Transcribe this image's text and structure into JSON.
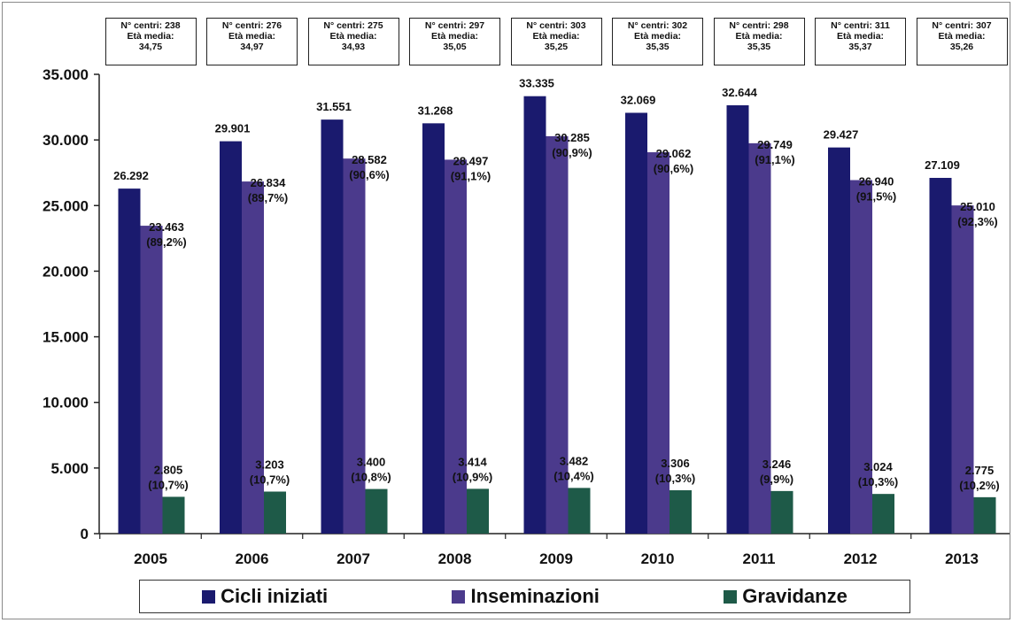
{
  "chart_data": {
    "type": "bar",
    "categories": [
      "2005",
      "2006",
      "2007",
      "2008",
      "2009",
      "2010",
      "2011",
      "2012",
      "2013"
    ],
    "series": [
      {
        "name": "Cicli iniziati",
        "color": "#1a1a6e",
        "values": [
          26292,
          29901,
          31551,
          31268,
          33335,
          32069,
          32644,
          29427,
          27109
        ],
        "labels": [
          [
            "26.292"
          ],
          [
            "29.901"
          ],
          [
            "31.551"
          ],
          [
            "31.268"
          ],
          [
            "33.335"
          ],
          [
            "32.069"
          ],
          [
            "32.644"
          ],
          [
            "29.427"
          ],
          [
            "27.109"
          ]
        ]
      },
      {
        "name": "Inseminazioni",
        "color": "#4b3a8c",
        "values": [
          23463,
          26834,
          28582,
          28497,
          30285,
          29062,
          29749,
          26940,
          25010
        ],
        "labels": [
          [
            "23.463",
            "(89,2%)"
          ],
          [
            "26.834",
            "(89,7%)"
          ],
          [
            "28.582",
            "(90,6%)"
          ],
          [
            "28.497",
            "(91,1%)"
          ],
          [
            "30.285",
            "(90,9%)"
          ],
          [
            "29.062",
            "(90,6%)"
          ],
          [
            "29.749",
            "(91,1%)"
          ],
          [
            "26.940",
            "(91,5%)"
          ],
          [
            "25.010",
            "(92,3%)"
          ]
        ]
      },
      {
        "name": "Gravidanze",
        "color": "#1e5a48",
        "values": [
          2805,
          3203,
          3400,
          3414,
          3482,
          3306,
          3246,
          3024,
          2775
        ],
        "labels": [
          [
            "2.805",
            "(10,7%)"
          ],
          [
            "3.203",
            "(10,7%)"
          ],
          [
            "3.400",
            "(10,8%)"
          ],
          [
            "3.414",
            "(10,9%)"
          ],
          [
            "3.482",
            "(10,4%)"
          ],
          [
            "3.306",
            "(10,3%)"
          ],
          [
            "3.246",
            "(9,9%)"
          ],
          [
            "3.024",
            "(10,3%)"
          ],
          [
            "2.775",
            "(10,2%)"
          ]
        ]
      }
    ],
    "ylim": [
      0,
      35000
    ],
    "yticks": [
      "0",
      "5.000",
      "10.000",
      "15.000",
      "20.000",
      "25.000",
      "30.000",
      "35.000"
    ],
    "ytick_values": [
      0,
      5000,
      10000,
      15000,
      20000,
      25000,
      30000,
      35000
    ],
    "grid": false,
    "legend_position": "bottom",
    "annotations": [
      [
        "N° centri: 238",
        "Età media:",
        "34,75"
      ],
      [
        "N° centri: 276",
        "Età media:",
        "34,97"
      ],
      [
        "N° centri: 275",
        "Età media:",
        "34,93"
      ],
      [
        "N° centri: 297",
        "Età media:",
        "35,05"
      ],
      [
        "N° centri: 303",
        "Età media:",
        "35,25"
      ],
      [
        "N° centri: 302",
        "Età media:",
        "35,35"
      ],
      [
        "N° centri: 298",
        "Età media:",
        "35,35"
      ],
      [
        "N° centri: 311",
        "Età media:",
        "35,37"
      ],
      [
        "N° centri: 307",
        "Età media:",
        "35,26"
      ]
    ]
  },
  "legend": {
    "items": [
      {
        "label": "Cicli iniziati",
        "color": "#1a1a6e"
      },
      {
        "label": "Inseminazioni",
        "color": "#4b3a8c"
      },
      {
        "label": "Gravidanze",
        "color": "#1e5a48"
      }
    ]
  }
}
